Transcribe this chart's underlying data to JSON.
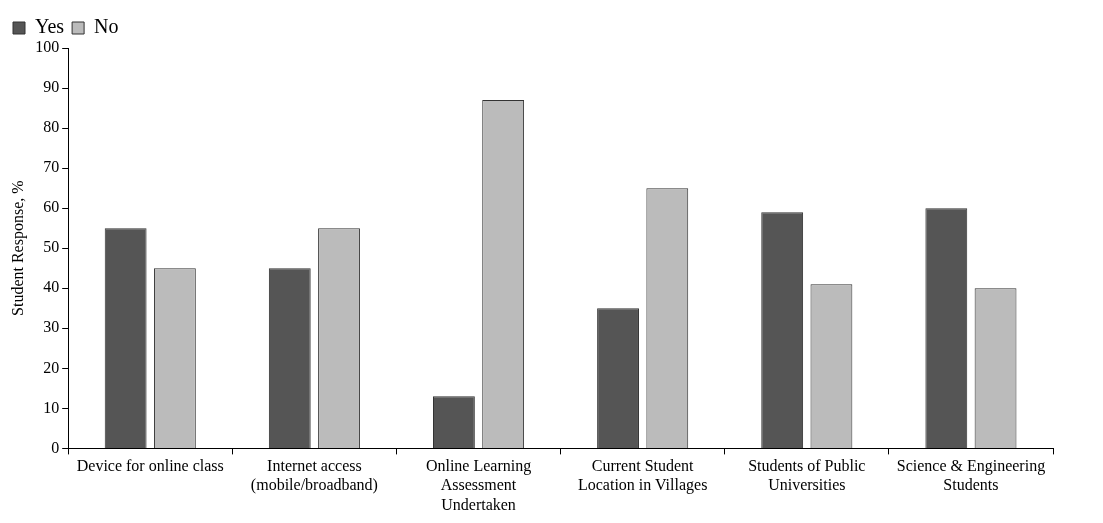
{
  "chart_data": {
    "type": "bar",
    "ylabel": "Student Response, %",
    "categories": [
      "Device for online class",
      "Internet access (mobile/broadband)",
      "Online Learning Assessment Undertaken",
      "Current Student Location in Villages",
      "Students of Public Universities",
      "Science & Engineering Students"
    ],
    "series": [
      {
        "name": "Yes",
        "color": "#555555",
        "values": [
          55,
          45,
          13,
          35,
          59,
          60
        ]
      },
      {
        "name": "No",
        "color": "#bbbbbb",
        "values": [
          45,
          55,
          87,
          65,
          41,
          40
        ]
      }
    ],
    "ylim": [
      0,
      100
    ],
    "yticks": [
      0,
      10,
      20,
      30,
      40,
      50,
      60,
      70,
      80,
      90,
      100
    ],
    "grid": false,
    "legend": "top left"
  }
}
